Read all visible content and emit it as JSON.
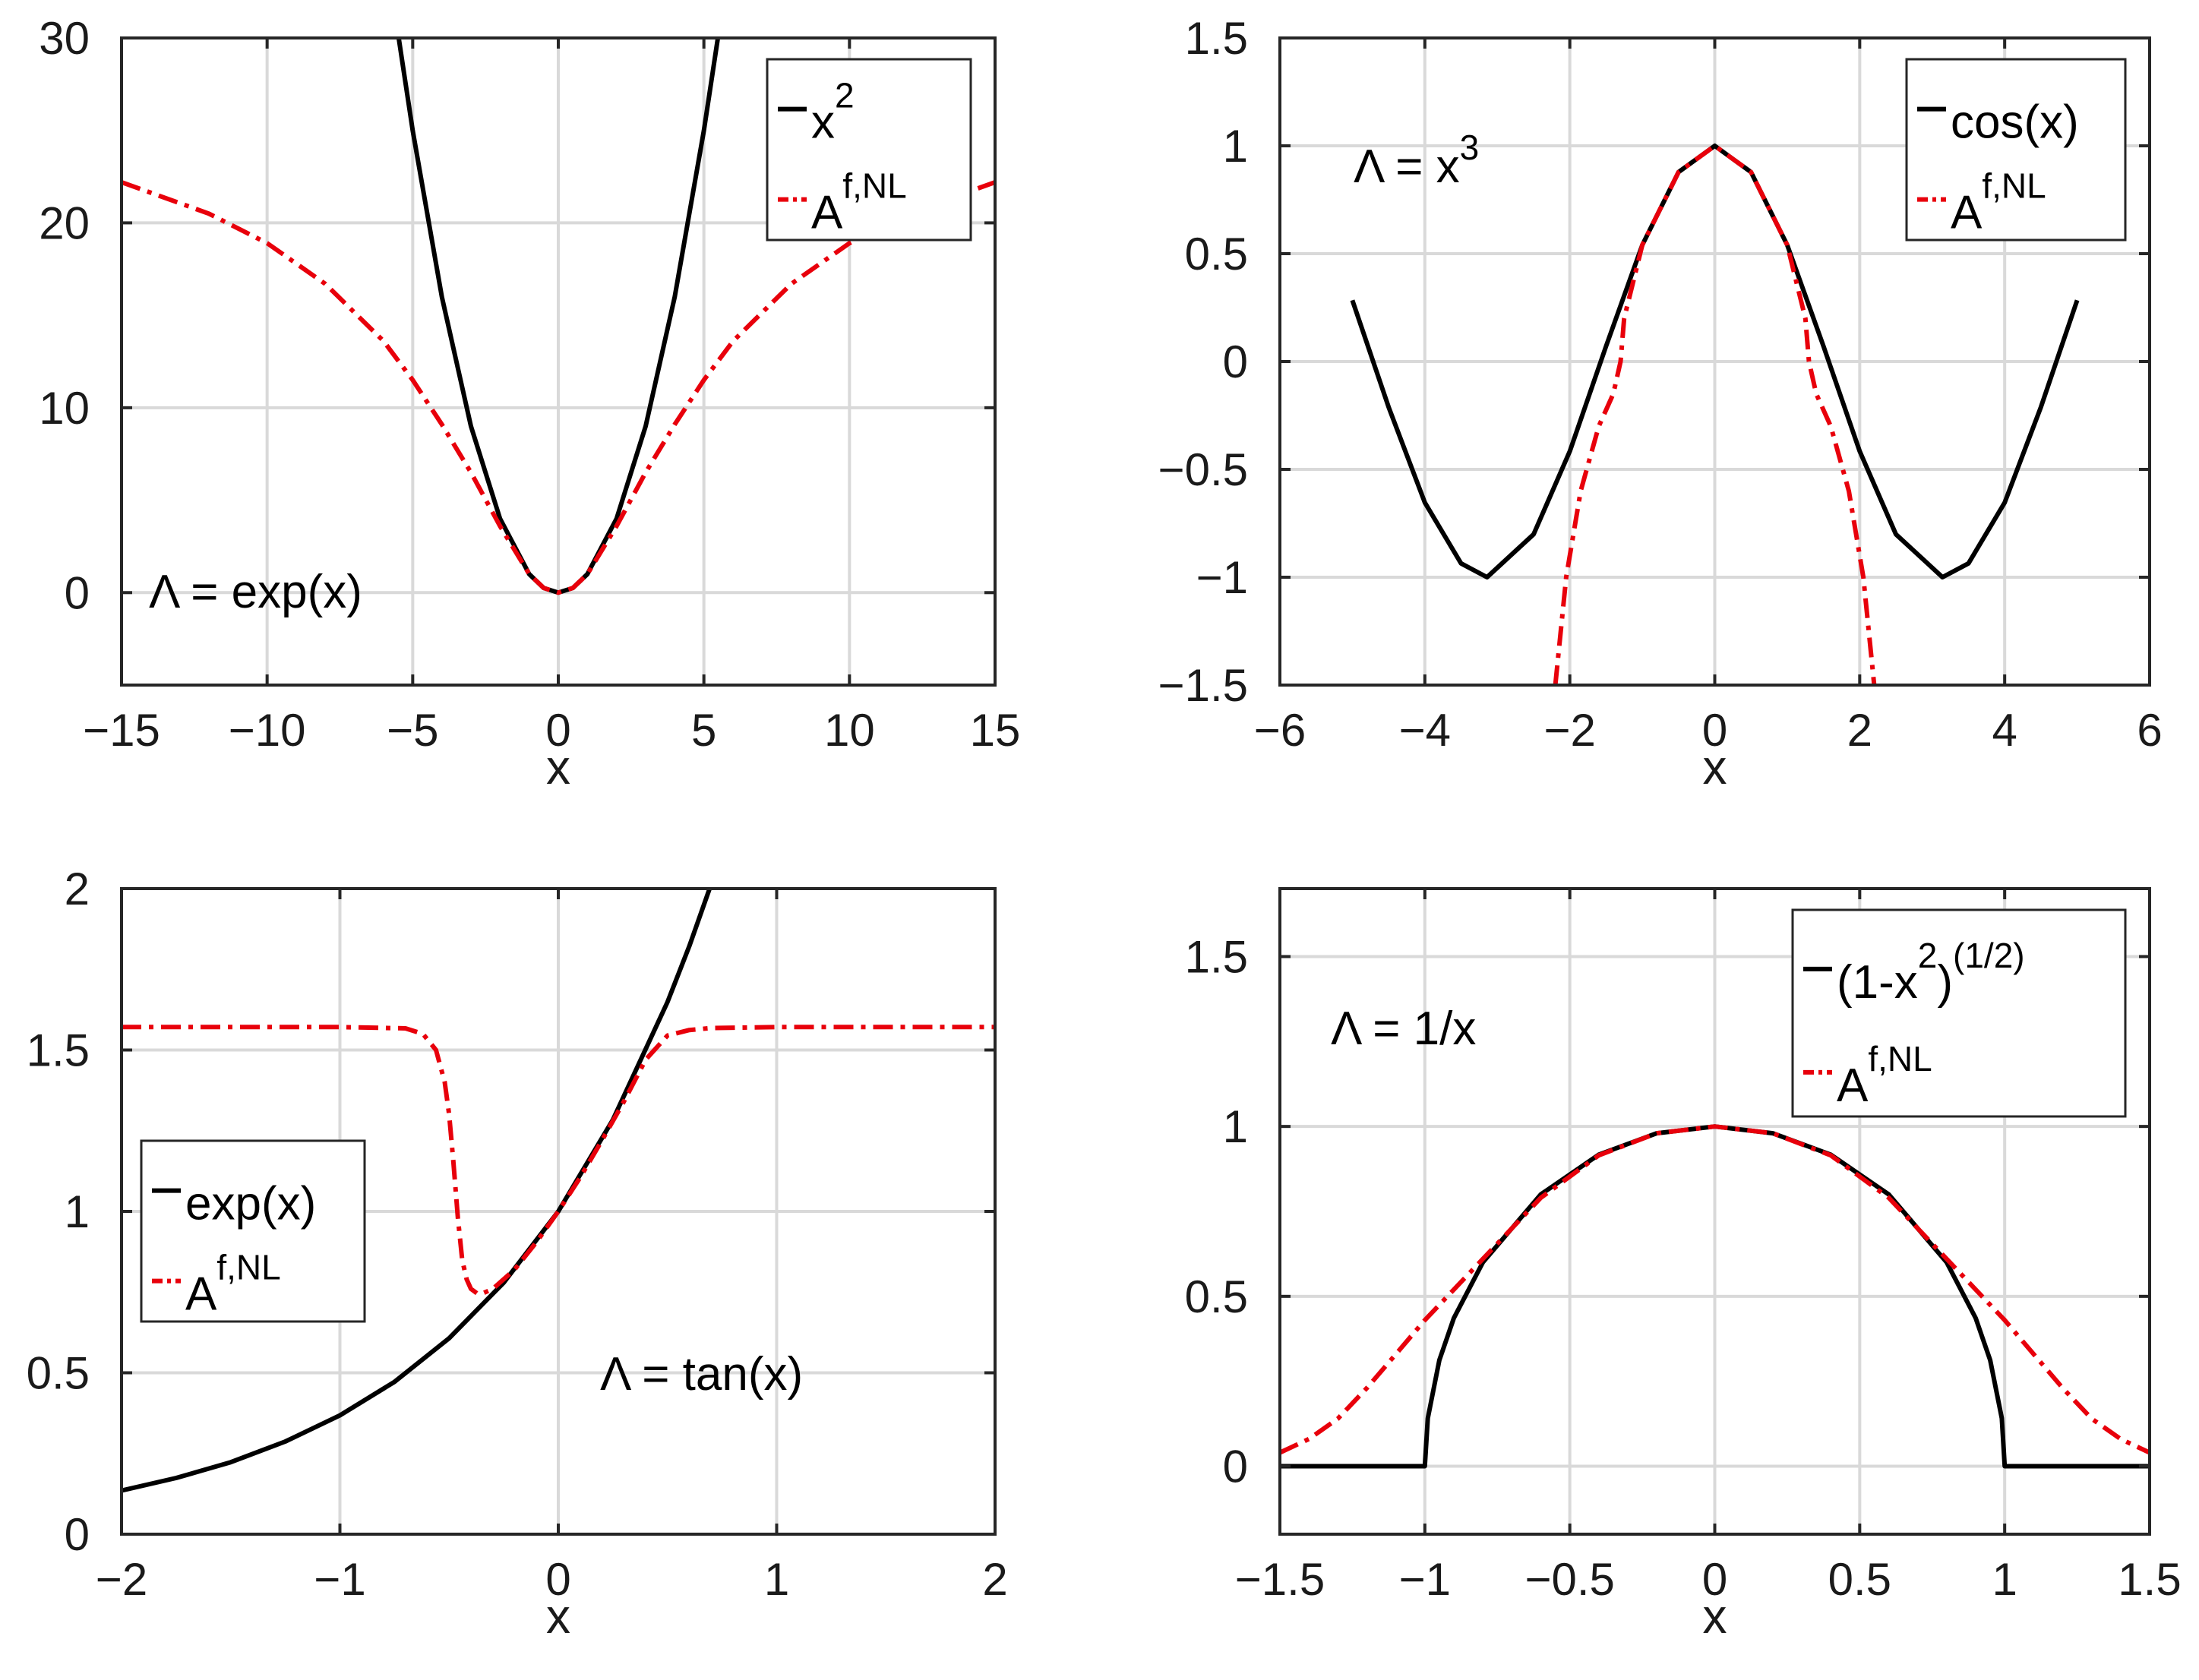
{
  "chart_data": [
    {
      "type": "line",
      "id": "p1",
      "xlabel": "x",
      "xlim": [
        -15,
        15
      ],
      "ylim": [
        -5,
        30
      ],
      "xticks": [
        -15,
        -10,
        -5,
        0,
        5,
        10,
        15
      ],
      "xtick_labels": [
        "−15",
        "−10",
        "−5",
        "0",
        "5",
        "10",
        "15"
      ],
      "yticks": [
        0,
        10,
        20,
        30
      ],
      "ytick_labels": [
        "0",
        "10",
        "20",
        "30"
      ],
      "grid": true,
      "annotation": {
        "main": "Λ = exp(x)",
        "sup": ""
      },
      "legend": {
        "position": "top-right",
        "entries": [
          {
            "style": "solid",
            "text": "x",
            "sup": "2"
          },
          {
            "style": "dashdot",
            "text": "A",
            "sup": "f,NL"
          }
        ]
      },
      "series": [
        {
          "name": "x^2",
          "style": "solid",
          "x": [
            -5.48,
            -5,
            -4,
            -3,
            -2,
            -1,
            -0.5,
            0,
            0.5,
            1,
            2,
            3,
            4,
            5,
            5.48
          ],
          "y": [
            30,
            25,
            16,
            9,
            4,
            1,
            0.25,
            0,
            0.25,
            1,
            4,
            9,
            16,
            25,
            30
          ]
        },
        {
          "name": "A^{f,NL}",
          "style": "dashdot",
          "x": [
            -15,
            -12,
            -10,
            -8,
            -6,
            -5,
            -4,
            -3,
            -2,
            -1,
            -0.5,
            0,
            0.5,
            1,
            2,
            3,
            4,
            5,
            6,
            8,
            10,
            12,
            15
          ],
          "y": [
            22.2,
            20.5,
            18.9,
            16.7,
            13.6,
            11.5,
            9.1,
            6.5,
            3.6,
            1.0,
            0.25,
            0,
            0.25,
            1.0,
            3.6,
            6.5,
            9.1,
            11.5,
            13.6,
            16.7,
            18.9,
            20.5,
            22.2
          ]
        }
      ]
    },
    {
      "type": "line",
      "id": "p2",
      "xlabel": "x",
      "xlim": [
        -6,
        6
      ],
      "ylim": [
        -1.5,
        1.5
      ],
      "xticks": [
        -6,
        -4,
        -2,
        0,
        2,
        4,
        6
      ],
      "xtick_labels": [
        "−6",
        "−4",
        "−2",
        "0",
        "2",
        "4",
        "6"
      ],
      "yticks": [
        -1.5,
        -1,
        -0.5,
        0,
        0.5,
        1,
        1.5
      ],
      "ytick_labels": [
        "−1.5",
        "−1",
        "−0.5",
        "0",
        "0.5",
        "1",
        "1.5"
      ],
      "grid": true,
      "annotation": {
        "main": "Λ = x",
        "sup": "3"
      },
      "legend": {
        "position": "top-right",
        "entries": [
          {
            "style": "solid",
            "text": "cos(x)",
            "sup": ""
          },
          {
            "style": "dashdot",
            "text": "A",
            "sup": "f,NL"
          }
        ]
      },
      "series": [
        {
          "name": "cos(x)",
          "style": "solid",
          "x": [
            -5,
            -4.5,
            -4,
            -3.5,
            -3.1416,
            -2.5,
            -2,
            -1.5,
            -1,
            -0.5,
            0,
            0.5,
            1,
            1.5,
            2,
            2.5,
            3.1416,
            3.5,
            4,
            4.5,
            5
          ],
          "y": [
            0.284,
            -0.211,
            -0.654,
            -0.936,
            -1,
            -0.801,
            -0.416,
            0.071,
            0.54,
            0.878,
            1,
            0.878,
            0.54,
            0.071,
            -0.416,
            -0.801,
            -1,
            -0.936,
            -0.654,
            -0.211,
            0.284
          ]
        },
        {
          "name": "A^{f,NL}",
          "style": "dashdot",
          "x": [
            -2.2,
            -2.05,
            -1.85,
            -1.6,
            -1.4,
            -1.3,
            -1.25,
            -1.0,
            -0.5,
            0,
            0.5,
            1.0,
            1.25,
            1.3,
            1.4,
            1.6,
            1.85,
            2.05,
            2.2
          ],
          "y": [
            -1.5,
            -1.0,
            -0.6,
            -0.3,
            -0.15,
            0.0,
            0.2,
            0.54,
            0.878,
            1,
            0.878,
            0.54,
            0.2,
            0.0,
            -0.15,
            -0.3,
            -0.6,
            -1.0,
            -1.5
          ]
        }
      ]
    },
    {
      "type": "line",
      "id": "p3",
      "xlabel": "x",
      "xlim": [
        -2,
        2
      ],
      "ylim": [
        0,
        2
      ],
      "xticks": [
        -2,
        -1,
        0,
        1,
        2
      ],
      "xtick_labels": [
        "−2",
        "−1",
        "0",
        "1",
        "2"
      ],
      "yticks": [
        0,
        0.5,
        1,
        1.5,
        2
      ],
      "ytick_labels": [
        "0",
        "0.5",
        "1",
        "1.5",
        "2"
      ],
      "grid": true,
      "annotation": {
        "main": "Λ = tan(x)",
        "sup": ""
      },
      "legend": {
        "position": "center-left",
        "entries": [
          {
            "style": "solid",
            "text": "exp(x)",
            "sup": ""
          },
          {
            "style": "dashdot",
            "text": "A",
            "sup": "f,NL"
          }
        ]
      },
      "series": [
        {
          "name": "exp(x)",
          "style": "solid",
          "x": [
            -2,
            -1.75,
            -1.5,
            -1.25,
            -1,
            -0.75,
            -0.5,
            -0.25,
            0,
            0.25,
            0.5,
            0.6,
            0.693
          ],
          "y": [
            0.135,
            0.174,
            0.223,
            0.287,
            0.368,
            0.472,
            0.607,
            0.779,
            1,
            1.284,
            1.649,
            1.822,
            2
          ]
        },
        {
          "name": "A^{f,NL}",
          "style": "dashdot",
          "x": [
            -2,
            -1.0,
            -0.7,
            -0.62,
            -0.56,
            -0.52,
            -0.5,
            -0.48,
            -0.46,
            -0.44,
            -0.42,
            -0.4,
            -0.37,
            -0.35,
            -0.3,
            -0.2,
            -0.1,
            0,
            0.1,
            0.2,
            0.3,
            0.4,
            0.5,
            0.6,
            0.7,
            1.0,
            2
          ],
          "y": [
            1.571,
            1.571,
            1.567,
            1.55,
            1.5,
            1.4,
            1.3,
            1.15,
            0.98,
            0.85,
            0.79,
            0.76,
            0.745,
            0.745,
            0.76,
            0.82,
            0.905,
            1.0,
            1.105,
            1.22,
            1.34,
            1.47,
            1.545,
            1.562,
            1.568,
            1.571,
            1.571
          ]
        }
      ]
    },
    {
      "type": "line",
      "id": "p4",
      "xlabel": "x",
      "xlim": [
        -1.5,
        1.5
      ],
      "ylim": [
        -0.2,
        1.7
      ],
      "xticks": [
        -1.5,
        -1,
        -0.5,
        0,
        0.5,
        1,
        1.5
      ],
      "xtick_labels": [
        "−1.5",
        "−1",
        "−0.5",
        "0",
        "0.5",
        "1",
        "1.5"
      ],
      "yticks": [
        0,
        0.5,
        1,
        1.5
      ],
      "ytick_labels": [
        "0",
        "0.5",
        "1",
        "1.5"
      ],
      "grid": true,
      "annotation": {
        "main": "Λ = 1/x",
        "sup": ""
      },
      "legend": {
        "position": "top-right",
        "entries": [
          {
            "style": "solid",
            "text": "(1-x",
            "sup": "2",
            "tail": ")",
            "sup2": "(1/2)"
          },
          {
            "style": "dashdot",
            "text": "A",
            "sup": "f,NL"
          }
        ]
      },
      "series": [
        {
          "name": "(1-x^2)^(1/2)",
          "style": "solid",
          "x": [
            -1.5,
            -1,
            -0.99,
            -0.95,
            -0.9,
            -0.8,
            -0.6,
            -0.4,
            -0.2,
            0,
            0.2,
            0.4,
            0.6,
            0.8,
            0.9,
            0.95,
            0.99,
            1,
            1.5
          ],
          "y": [
            0,
            0,
            0.141,
            0.312,
            0.436,
            0.6,
            0.8,
            0.917,
            0.98,
            1,
            0.98,
            0.917,
            0.8,
            0.6,
            0.436,
            0.312,
            0.141,
            0,
            0
          ]
        },
        {
          "name": "A^{f,NL}",
          "style": "dashdot",
          "x": [
            -1.5,
            -1.4,
            -1.3,
            -1.2,
            -1.1,
            -1.0,
            -0.9,
            -0.8,
            -0.6,
            -0.4,
            -0.2,
            0,
            0.2,
            0.4,
            0.6,
            0.8,
            0.9,
            1.0,
            1.1,
            1.2,
            1.3,
            1.4,
            1.5
          ],
          "y": [
            0.04,
            0.08,
            0.14,
            0.23,
            0.33,
            0.43,
            0.52,
            0.61,
            0.79,
            0.915,
            0.98,
            1,
            0.98,
            0.915,
            0.79,
            0.61,
            0.52,
            0.43,
            0.33,
            0.23,
            0.14,
            0.08,
            0.04
          ]
        }
      ]
    }
  ]
}
